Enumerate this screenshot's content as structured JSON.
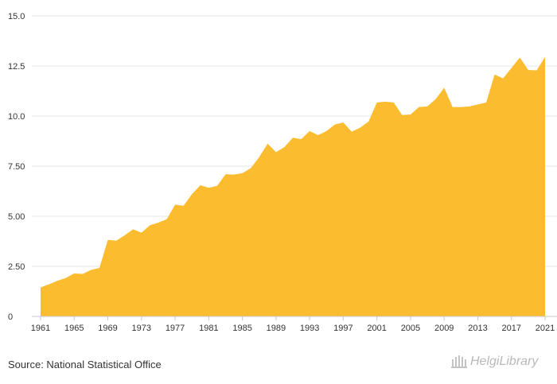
{
  "chart_data": {
    "type": "area",
    "title": "",
    "xlabel": "",
    "ylabel": "",
    "ylim": [
      0,
      15
    ],
    "y_ticks": [
      "0",
      "2.50",
      "5.00",
      "7.50",
      "10.0",
      "12.5",
      "15.0"
    ],
    "x_ticks": [
      "1961",
      "1965",
      "1969",
      "1973",
      "1977",
      "1981",
      "1985",
      "1989",
      "1993",
      "1997",
      "2001",
      "2005",
      "2009",
      "2013",
      "2017",
      "2021"
    ],
    "color": "#fbbc2f",
    "series": [
      {
        "name": "Value",
        "x": [
          1961,
          1962,
          1963,
          1964,
          1965,
          1966,
          1967,
          1968,
          1969,
          1970,
          1971,
          1972,
          1973,
          1974,
          1975,
          1976,
          1977,
          1978,
          1979,
          1980,
          1981,
          1982,
          1983,
          1984,
          1985,
          1986,
          1987,
          1988,
          1989,
          1990,
          1991,
          1992,
          1993,
          1994,
          1995,
          1996,
          1997,
          1998,
          1999,
          2000,
          2001,
          2002,
          2003,
          2004,
          2005,
          2006,
          2007,
          2008,
          2009,
          2010,
          2011,
          2012,
          2013,
          2014,
          2015,
          2016,
          2017,
          2018,
          2019,
          2020,
          2021
        ],
        "values": [
          1.45,
          1.6,
          1.78,
          1.92,
          2.15,
          2.12,
          2.32,
          2.42,
          3.82,
          3.78,
          4.05,
          4.35,
          4.18,
          4.55,
          4.68,
          4.85,
          5.58,
          5.52,
          6.1,
          6.55,
          6.42,
          6.52,
          7.1,
          7.08,
          7.15,
          7.4,
          7.95,
          8.62,
          8.2,
          8.45,
          8.92,
          8.85,
          9.25,
          9.05,
          9.25,
          9.58,
          9.68,
          9.22,
          9.42,
          9.72,
          10.68,
          10.72,
          10.68,
          10.05,
          10.08,
          10.45,
          10.48,
          10.85,
          11.42,
          10.45,
          10.45,
          10.48,
          10.58,
          10.68,
          12.08,
          11.88,
          12.4,
          12.92,
          12.3,
          12.28,
          12.95
        ]
      }
    ]
  },
  "footer": {
    "source": "Source: National Statistical Office",
    "logo_text": "HelgiLibrary"
  }
}
